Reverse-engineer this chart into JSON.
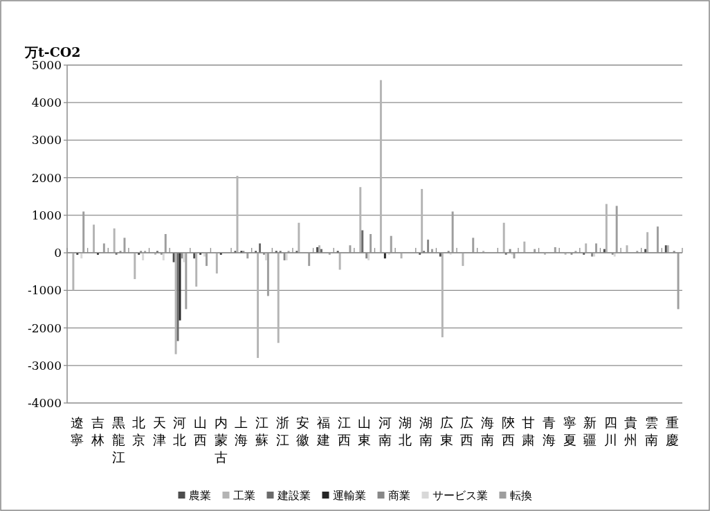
{
  "chart_data": {
    "type": "bar",
    "ylabel": "万t-CO2",
    "categories": [
      "遼寧",
      "吉林",
      "黒龍江",
      "北京",
      "天津",
      "河北",
      "山西",
      "内蒙古",
      "上海",
      "江蘇",
      "浙江",
      "安徽",
      "福建",
      "江西",
      "山東",
      "河南",
      "湖北",
      "湖南",
      "広東",
      "広西",
      "海南",
      "陝西",
      "甘粛",
      "青海",
      "寧夏",
      "新疆",
      "四川",
      "貴州",
      "雲南",
      "重慶"
    ],
    "series": [
      {
        "name": "農業",
        "color": "#4d4d4d",
        "values": [
          null,
          null,
          null,
          null,
          null,
          -250,
          -150,
          null,
          50,
          50,
          50,
          50,
          150,
          50,
          null,
          null,
          null,
          -50,
          -100,
          null,
          null,
          null,
          null,
          null,
          null,
          -50,
          100,
          null,
          100,
          200
        ]
      },
      {
        "name": "工業",
        "color": "#b4b4b4",
        "values": [
          -1000,
          750,
          650,
          -700,
          -50,
          -2700,
          -900,
          -550,
          2050,
          -2800,
          -2400,
          800,
          200,
          -450,
          1750,
          4600,
          -150,
          1700,
          -2250,
          -350,
          50,
          800,
          300,
          -50,
          -50,
          250,
          1300,
          200,
          550,
          200
        ]
      },
      {
        "name": "建設業",
        "color": "#6a6a6a",
        "values": [
          null,
          null,
          -50,
          null,
          50,
          -2350,
          null,
          null,
          null,
          250,
          50,
          null,
          100,
          null,
          600,
          null,
          null,
          50,
          null,
          null,
          null,
          -50,
          null,
          null,
          null,
          null,
          null,
          null,
          null,
          null
        ]
      },
      {
        "name": "運輸業",
        "color": "#262626",
        "values": [
          -50,
          -50,
          null,
          -50,
          null,
          -1800,
          -50,
          -50,
          50,
          null,
          null,
          null,
          null,
          null,
          null,
          -150,
          null,
          null,
          null,
          null,
          null,
          null,
          null,
          null,
          null,
          null,
          null,
          null,
          null,
          null
        ]
      },
      {
        "name": "商業",
        "color": "#888888",
        "values": [
          null,
          null,
          50,
          50,
          -50,
          -150,
          null,
          null,
          50,
          -50,
          -200,
          null,
          null,
          null,
          -150,
          null,
          null,
          350,
          50,
          null,
          null,
          100,
          null,
          null,
          -50,
          -100,
          -50,
          null,
          null,
          50
        ]
      },
      {
        "name": "サービス業",
        "color": "#d8d8d8",
        "values": [
          -150,
          null,
          null,
          -200,
          -200,
          -250,
          -100,
          null,
          null,
          -200,
          -200,
          null,
          null,
          null,
          -200,
          -50,
          null,
          null,
          -50,
          null,
          null,
          -50,
          null,
          null,
          null,
          -100,
          -100,
          null,
          null,
          null
        ]
      },
      {
        "name": "転換",
        "color": "#9e9e9e",
        "values": [
          1100,
          250,
          400,
          50,
          500,
          -1500,
          -350,
          null,
          -150,
          -1150,
          50,
          -350,
          -50,
          200,
          500,
          450,
          null,
          100,
          1100,
          400,
          null,
          -150,
          100,
          150,
          50,
          250,
          1250,
          50,
          700,
          -1500
        ]
      }
    ],
    "ylim": [
      -4000,
      5000
    ],
    "yticks": [
      -4000,
      -3000,
      -2000,
      -1000,
      0,
      1000,
      2000,
      3000,
      4000,
      5000
    ],
    "grid": "y",
    "legend": "bottom"
  }
}
